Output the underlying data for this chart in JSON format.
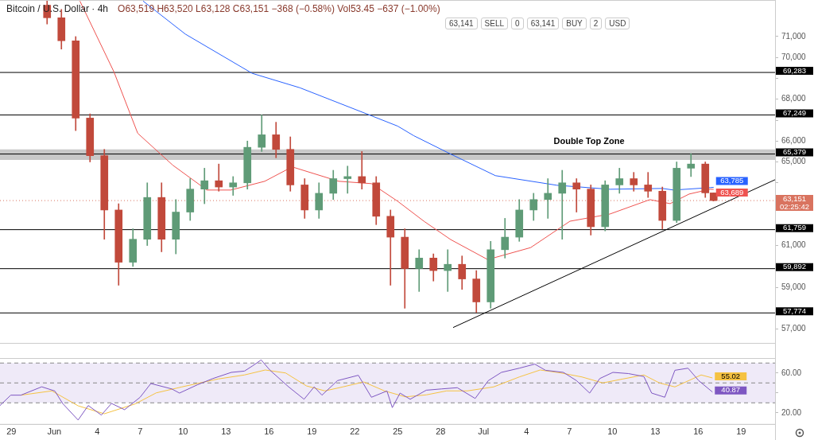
{
  "chart_data": [
    {
      "type": "candlestick",
      "title": "Bitcoin / U.S. Dollar · 4h",
      "subtitle": "O63,519 H63,520 L63,128 C63,151 −368 (−0.58%) Vol53.45 −637 (−1.00%)",
      "x": [
        "--05-31T12:00",
        "--06-01T12:00",
        "--06-02T12:00",
        "--06-03T12:00",
        "--06-04T12:00",
        "--06-05T12:00",
        "--06-06T12:00",
        "--06-07T12:00",
        "--06-08T12:00",
        "--06-09T12:00",
        "--06-10T12:00",
        "--06-11T12:00",
        "--06-12T12:00",
        "--06-13T12:00",
        "--06-14T12:00",
        "--06-15T12:00",
        "--06-16T12:00",
        "--06-17T12:00",
        "--06-18T12:00",
        "--06-19T12:00",
        "--06-20T12:00",
        "--06-21T12:00",
        "--06-22T12:00",
        "--06-23T12:00",
        "--06-24T12:00",
        "--06-25T12:00",
        "--06-26T12:00",
        "--06-27T12:00",
        "--06-28T12:00",
        "--06-29T12:00",
        "--06-30T12:00",
        "--07-01T12:00",
        "--07-02T12:00",
        "--07-03T12:00",
        "--07-04T12:00",
        "--07-05T12:00",
        "--07-06T12:00",
        "--07-07T12:00",
        "--07-08T12:00",
        "--07-09T12:00",
        "--07-10T12:00",
        "--07-11T12:00",
        "--07-12T12:00",
        "--07-13T12:00",
        "--07-14T12:00",
        "--07-15T12:00",
        "--07-16T12:00",
        "--07-17T02:00"
      ],
      "ohlc": [
        [
          72500,
          72700,
          71600,
          71900
        ],
        [
          71900,
          72300,
          70400,
          70800
        ],
        [
          70800,
          71000,
          66500,
          67100
        ],
        [
          67100,
          67300,
          65000,
          65300
        ],
        [
          65300,
          65600,
          61300,
          62700
        ],
        [
          62700,
          63000,
          59100,
          60200
        ],
        [
          60200,
          61800,
          60000,
          61300
        ],
        [
          61300,
          64000,
          61000,
          63300
        ],
        [
          63300,
          64000,
          60700,
          61300
        ],
        [
          61300,
          63200,
          60600,
          62600
        ],
        [
          62600,
          64200,
          62200,
          63700
        ],
        [
          63700,
          64700,
          63000,
          64100
        ],
        [
          64100,
          64900,
          63600,
          63800
        ],
        [
          63800,
          64300,
          63400,
          64000
        ],
        [
          64000,
          66000,
          63700,
          65700
        ],
        [
          65700,
          67249,
          65500,
          66300
        ],
        [
          66300,
          66900,
          65200,
          65600
        ],
        [
          65600,
          66200,
          63600,
          63900
        ],
        [
          63900,
          64200,
          62300,
          62700
        ],
        [
          62700,
          64000,
          62300,
          63500
        ],
        [
          63500,
          64600,
          63200,
          64200
        ],
        [
          64200,
          64800,
          63500,
          64300
        ],
        [
          64300,
          65500,
          63700,
          64000
        ],
        [
          64000,
          64300,
          62000,
          62400
        ],
        [
          62400,
          62700,
          59100,
          61400
        ],
        [
          61400,
          61800,
          58000,
          59900
        ],
        [
          59900,
          60800,
          58800,
          60400
        ],
        [
          60400,
          60600,
          59300,
          59800
        ],
        [
          59800,
          60800,
          58800,
          60100
        ],
        [
          60100,
          60500,
          58900,
          59400
        ],
        [
          59400,
          59800,
          57800,
          58300
        ],
        [
          58300,
          61200,
          58000,
          60800
        ],
        [
          60800,
          62300,
          60400,
          61400
        ],
        [
          61400,
          63200,
          61200,
          62700
        ],
        [
          62700,
          63500,
          62200,
          63200
        ],
        [
          63200,
          64200,
          62300,
          63500
        ],
        [
          63500,
          64600,
          61300,
          64000
        ],
        [
          64000,
          64200,
          62600,
          63700
        ],
        [
          63700,
          63900,
          61500,
          61900
        ],
        [
          61900,
          64100,
          61700,
          63900
        ],
        [
          63900,
          64700,
          63500,
          64200
        ],
        [
          64200,
          64500,
          63600,
          63900
        ],
        [
          63900,
          64500,
          63300,
          63600
        ],
        [
          63600,
          63800,
          61800,
          62200
        ],
        [
          62200,
          65000,
          62100,
          64700
        ],
        [
          64700,
          65400,
          64300,
          64900
        ],
        [
          64900,
          65000,
          63300,
          63519
        ],
        [
          63519,
          63520,
          63128,
          63151
        ]
      ],
      "colors": [
        "#c1493b",
        "#c1493b",
        "#c1493b",
        "#c1493b",
        "#c1493b",
        "#c1493b",
        "#5f9b77",
        "#5f9b77",
        "#c1493b",
        "#5f9b77",
        "#5f9b77",
        "#5f9b77",
        "#c1493b",
        "#5f9b77",
        "#5f9b77",
        "#5f9b77",
        "#c1493b",
        "#c1493b",
        "#c1493b",
        "#5f9b77",
        "#5f9b77",
        "#5f9b77",
        "#c1493b",
        "#c1493b",
        "#c1493b",
        "#c1493b",
        "#5f9b77",
        "#c1493b",
        "#5f9b77",
        "#c1493b",
        "#c1493b",
        "#5f9b77",
        "#5f9b77",
        "#5f9b77",
        "#5f9b77",
        "#5f9b77",
        "#5f9b77",
        "#c1493b",
        "#c1493b",
        "#5f9b77",
        "#5f9b77",
        "#c1493b",
        "#c1493b",
        "#c1493b",
        "#5f9b77",
        "#5f9b77",
        "#c1493b",
        "#c1493b"
      ],
      "series": [
        {
          "type": "line",
          "color": "#2962ff",
          "x": [
            "--06-07T05:00",
            "--06-10T04:00",
            "--06-14T20:00",
            "--06-18T04:00",
            "--06-23T04:00",
            "--06-25T00:00",
            "--06-26T03:00",
            "--06-28T17:00",
            "--07-01T20:00",
            "--07-06T03:00",
            "--07-09T20:00",
            "--07-13T12:00",
            "--07-14T07:00",
            "--07-16T20:00",
            "--07-17T02:00"
          ],
          "values": [
            72700,
            71115,
            69240,
            68550,
            67210,
            66715,
            66256,
            65376,
            64343,
            63884,
            63693,
            63731,
            63655,
            63770,
            63785
          ]
        },
        {
          "type": "line",
          "color": "#ef5350",
          "x": [
            "--06-02T19:00",
            "--06-05T04:00",
            "--06-06T20:00",
            "--06-09T07:00",
            "--06-11T16:00",
            "--06-13T08:00",
            "--06-15T17:00",
            "--06-17T15:00",
            "--06-20T21:00",
            "--06-23T04:00",
            "--06-25T00:00",
            "--06-26T20:00",
            "--06-28T17:00",
            "--07-01T07:00",
            "--07-04T07:00",
            "--07-07T01:00",
            "--07-09T20:00",
            "--07-12T15:00",
            "--07-14T01:00",
            "--07-15T09:00",
            "--07-16T20:00",
            "--07-17T02:00"
          ],
          "values": [
            72700,
            69317,
            66371,
            64840,
            63655,
            63655,
            64075,
            64764,
            64075,
            63961,
            63119,
            62163,
            61283,
            60327,
            60900,
            62163,
            62507,
            63196,
            63004,
            63464,
            63693,
            63689
          ]
        },
        {
          "type": "line",
          "color": "#000000",
          "x": [
            "--06-28T21:00",
            "--07-21T09:00"
          ],
          "values": [
            57075,
            64150
          ]
        }
      ],
      "xlim": [
        "--05-28T05:00",
        "--07-21T09:00"
      ],
      "ylim": [
        56300,
        72750
      ],
      "yticks": [
        {
          "value": 57000,
          "label": "57,000"
        },
        {
          "value": 58000,
          "label": null
        },
        {
          "value": 59000,
          "label": "59,000"
        },
        {
          "value": 60000,
          "label": null
        },
        {
          "value": 61000,
          "label": "61,000"
        },
        {
          "value": 62000,
          "label": null
        },
        {
          "value": 63000,
          "label": null
        },
        {
          "value": 64000,
          "label": null
        },
        {
          "value": 65000,
          "label": "65,000"
        },
        {
          "value": 66000,
          "label": "66,000"
        },
        {
          "value": 67000,
          "label": null
        },
        {
          "value": 68000,
          "label": "68,000"
        },
        {
          "value": 69000,
          "label": null
        },
        {
          "value": 70000,
          "label": "70,000"
        },
        {
          "value": 71000,
          "label": "71,000"
        }
      ],
      "tick_labels": "y",
      "marker": "none",
      "bands": [
        {
          "axis": "y",
          "from": 65100,
          "to": 65600,
          "label": "Double Top Zone",
          "color": "#c8c8c8"
        }
      ],
      "ref_lines": [
        {
          "axis": "y",
          "value": 69283,
          "label": "69,283",
          "color": "#000000"
        },
        {
          "axis": "y",
          "value": 67249,
          "label": "67,249",
          "color": "#000000"
        },
        {
          "axis": "y",
          "value": 65379,
          "label": "65,379",
          "color": "#000000"
        },
        {
          "axis": "y",
          "value": 61759,
          "label": "61,759",
          "color": "#000000"
        },
        {
          "axis": "y",
          "value": 59892,
          "label": "59,892",
          "color": "#000000"
        },
        {
          "axis": "y",
          "value": 57774,
          "label": "57,774",
          "color": "#000000"
        },
        {
          "axis": "y",
          "value": 63151,
          "label": "63,151\n02:25:42",
          "color": "#d9735f",
          "line_style": "dotted"
        }
      ],
      "annotations": [
        "63,141",
        "SELL",
        "0",
        "63,141",
        "BUY",
        "2",
        "USD",
        {
          "text": "63,785",
          "x": "--07-17T02:00",
          "y": 63785
        },
        {
          "text": "63,689",
          "x": "--07-17T02:00",
          "y": 63689
        }
      ]
    },
    {
      "type": "line",
      "series": [
        {
          "color": "#7e57c2",
          "x": [
            "--05-28T05:00",
            "--05-28T23:00",
            "--05-29T16:00",
            "--05-31T03:00",
            "--06-01T01:00",
            "--06-01T14:00",
            "--06-02T16:00",
            "--06-03T09:00",
            "--06-04T07:00",
            "--06-05T00:00",
            "--06-05T22:00",
            "--06-07T00:00",
            "--06-07T18:00",
            "--06-09T05:00",
            "--06-09T18:00",
            "--06-11T00:00",
            "--06-12T02:00",
            "--06-13T09:00",
            "--06-14T07:00",
            "--06-14T20:00",
            "--06-15T11:00",
            "--06-16T02:00",
            "--06-17T09:00",
            "--06-18T11:00",
            "--06-19T04:00",
            "--06-19T17:00",
            "--06-20T19:00",
            "--06-22T06:00",
            "--06-23T04:00",
            "--06-24T06:00",
            "--06-24T15:00",
            "--06-25T04:00",
            "--06-25T21:00",
            "--06-27T00:00",
            "--06-28T02:00",
            "--06-29T04:00",
            "--06-30T10:00",
            "--07-01T08:00",
            "--07-02T06:00",
            "--07-03T12:00",
            "--07-04T14:00",
            "--07-05T08:00",
            "--07-06T14:00",
            "--07-07T12:00",
            "--07-08T10:00",
            "--07-09T03:00",
            "--07-10T01:00",
            "--07-11T03:00",
            "--07-12T05:00",
            "--07-12T18:00",
            "--07-13T16:00",
            "--07-14T09:00",
            "--07-15T07:00",
            "--07-16T01:00",
            "--07-17T00:00"
          ],
          "values": [
            27.3,
            37.7,
            37.7,
            46.1,
            41.9,
            29.4,
            12.7,
            27.3,
            17.7,
            29.4,
            23.1,
            35.6,
            49.4,
            44,
            39.8,
            48.1,
            54.4,
            60.6,
            61.9,
            66.9,
            73.1,
            62.7,
            46.1,
            33.6,
            46.1,
            37.7,
            52.3,
            57.7,
            35.6,
            41.9,
            25.2,
            39.8,
            33.6,
            42.7,
            44,
            45.2,
            34.4,
            52.3,
            60.6,
            64.8,
            68.9,
            62.7,
            60.6,
            52.3,
            39.8,
            54.4,
            60.6,
            59.4,
            56.4,
            39.8,
            35.6,
            62.7,
            64.8,
            52.3,
            40.87
          ]
        },
        {
          "color": "#f5c242",
          "x": [
            "--05-29T16:00",
            "--05-31T20:00",
            "--06-02T16:00",
            "--06-04T12:00",
            "--06-06T16:00",
            "--06-08T03:00",
            "--06-09T22:00",
            "--06-12T11:00",
            "--06-14T07:00",
            "--06-15T18:00",
            "--06-17T04:00",
            "--06-18T15:00",
            "--06-19T22:00",
            "--06-21T04:00",
            "--06-22T15:00",
            "--06-24T02:00",
            "--06-25T13:00",
            "--06-27T00:00",
            "--06-28T10:00",
            "--06-29T21:00",
            "--07-01T17:00",
            "--07-03T12:00",
            "--07-04T23:00",
            "--07-06T10:00",
            "--07-07T21:00",
            "--07-09T08:00",
            "--07-10T18:00",
            "--07-12T05:00",
            "--07-13T07:00",
            "--07-14T09:00",
            "--07-16T05:00",
            "--07-17T00:00"
          ],
          "values": [
            37.7,
            42,
            27,
            19,
            29,
            40,
            46,
            54,
            58,
            63,
            60,
            47,
            42,
            46,
            51,
            42,
            36,
            38,
            42,
            42,
            46,
            56,
            63,
            60,
            56,
            50,
            54,
            58,
            50,
            46,
            58,
            55.02
          ]
        }
      ],
      "xlim": [
        "--05-28T05:00",
        "--07-21T09:00"
      ],
      "xticks": [
        {
          "value": "--05-29",
          "label": "29"
        },
        {
          "value": "--06-01",
          "label": "Jun"
        },
        {
          "value": "--06-04",
          "label": "4"
        },
        {
          "value": "--06-07",
          "label": "7"
        },
        {
          "value": "--06-10",
          "label": "10"
        },
        {
          "value": "--06-13",
          "label": "13"
        },
        {
          "value": "--06-16",
          "label": "16"
        },
        {
          "value": "--06-19",
          "label": "19"
        },
        {
          "value": "--06-22",
          "label": "22"
        },
        {
          "value": "--06-25",
          "label": "25"
        },
        {
          "value": "--06-28",
          "label": "28"
        },
        {
          "value": "--07-01",
          "label": "Jul"
        },
        {
          "value": "--07-04",
          "label": "4"
        },
        {
          "value": "--07-07",
          "label": "7"
        },
        {
          "value": "--07-10",
          "label": "10"
        },
        {
          "value": "--07-13",
          "label": "13"
        },
        {
          "value": "--07-16",
          "label": "16"
        },
        {
          "value": "--07-19",
          "label": "19"
        }
      ],
      "ylim": [
        8,
        75
      ],
      "yticks": [
        {
          "value": 20,
          "label": "20.00"
        },
        {
          "value": 40,
          "label": null
        },
        {
          "value": 60,
          "label": "60.00"
        }
      ],
      "marker": "none",
      "bands": [
        {
          "axis": "y",
          "from": 30,
          "to": 70,
          "color": "#efeaf8"
        }
      ],
      "ref_lines": [
        {
          "axis": "y",
          "value": 70,
          "color": "#888888",
          "line_style": "dashed"
        },
        {
          "axis": "y",
          "value": 50,
          "color": "#888888",
          "line_style": "dashed"
        },
        {
          "axis": "y",
          "value": 30,
          "color": "#888888",
          "line_style": "dashed"
        }
      ],
      "annotations": [
        {
          "text": "55.02",
          "x": "--07-17T00:00",
          "y": 55.02
        },
        {
          "text": "40.87",
          "x": "--07-17T00:00",
          "y": 40.87
        }
      ]
    }
  ]
}
